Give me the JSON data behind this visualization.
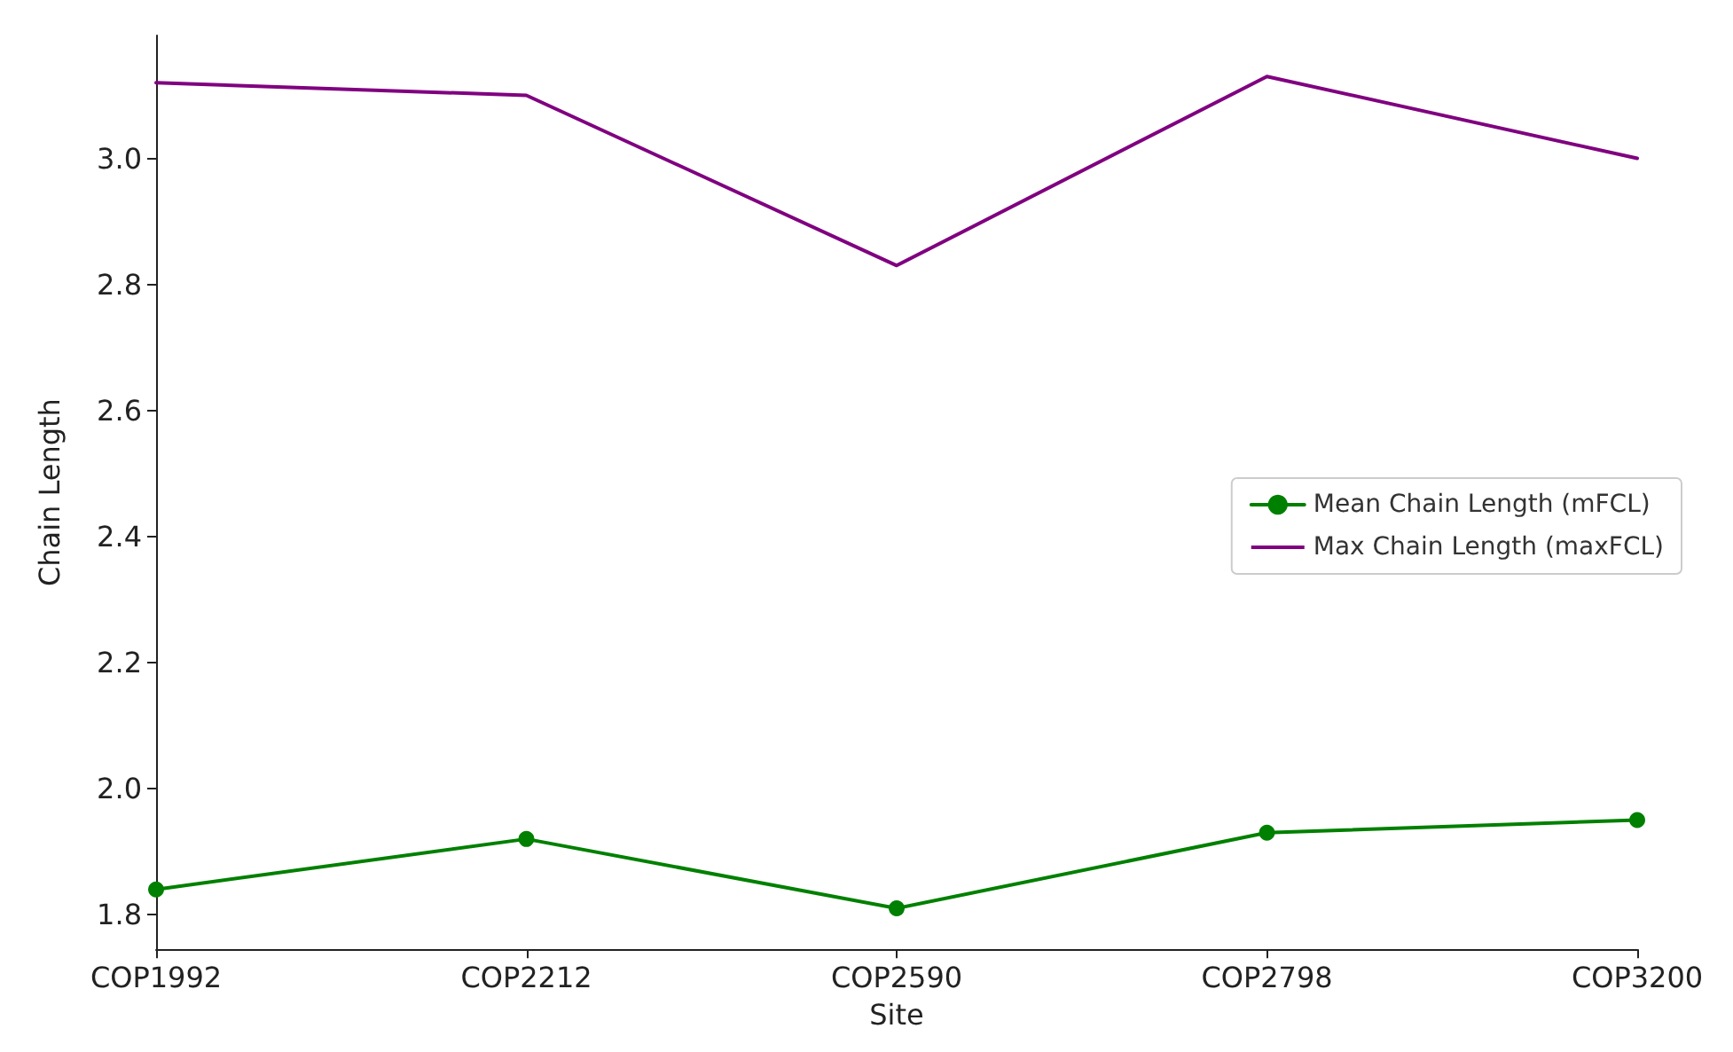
{
  "chart_data": {
    "type": "line",
    "xlabel": "Site",
    "ylabel": "Chain Length",
    "categories": [
      "COP1992",
      "COP2212",
      "COP2590",
      "COP2798",
      "COP3200"
    ],
    "series": [
      {
        "name": "Mean Chain Length (mFCL)",
        "color": "#008000",
        "values": [
          1.84,
          1.92,
          1.81,
          1.93,
          1.95
        ],
        "marker": "circle"
      },
      {
        "name": "Max Chain Length (maxFCL)",
        "color": "#800080",
        "values": [
          3.12,
          3.1,
          2.83,
          3.13,
          3.0
        ],
        "marker": "none"
      }
    ],
    "ylim": [
      1.745,
      3.195
    ],
    "yticks": [
      1.8,
      {
        "value": 2,
        "label": "2.0"
      },
      2.2,
      2.4,
      2.6,
      2.8,
      {
        "value": 3,
        "label": "3.0"
      }
    ],
    "grid": false,
    "legend": "right",
    "line_style": "solid"
  }
}
